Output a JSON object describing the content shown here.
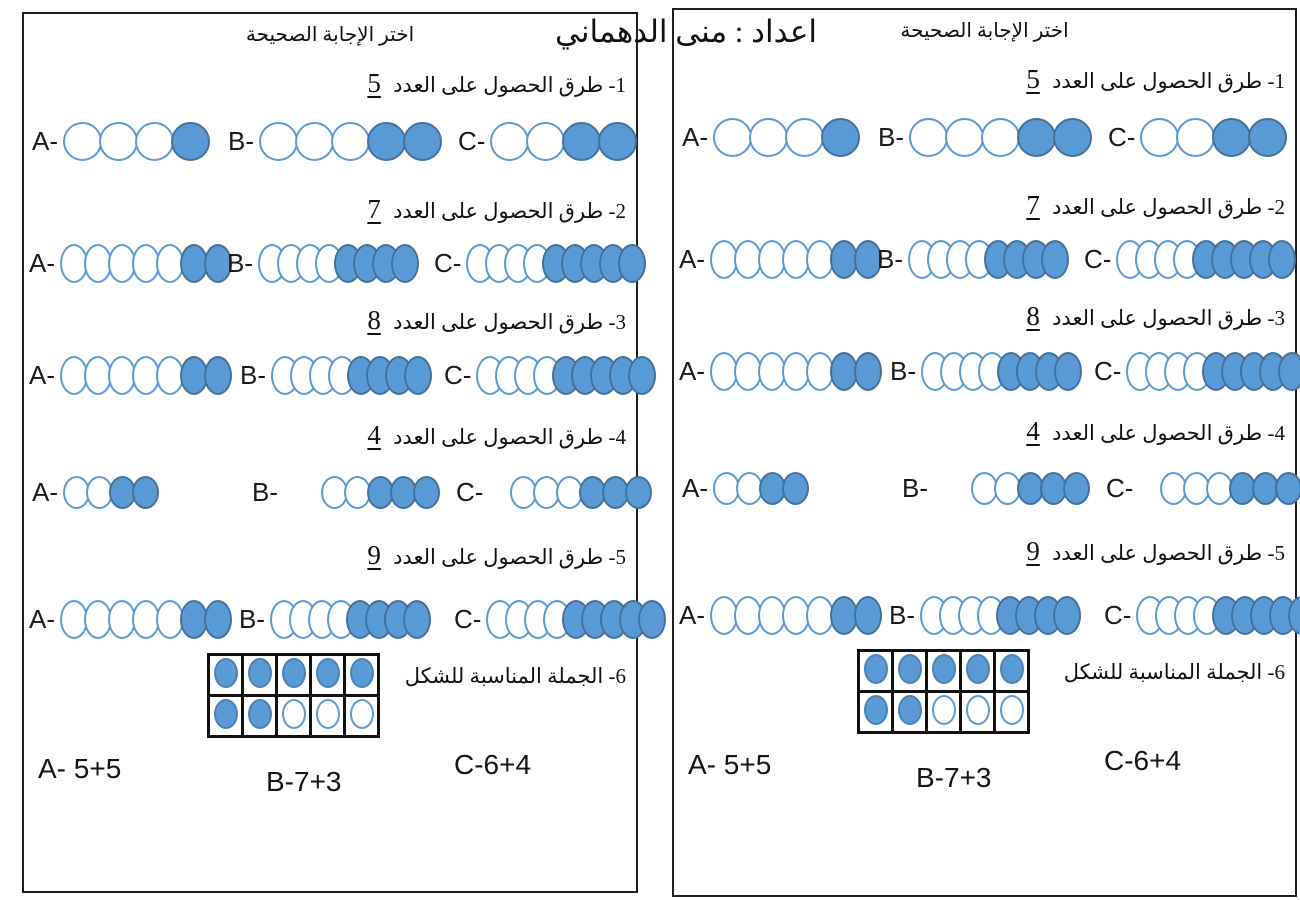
{
  "title_overlay": "اعداد : منى الدهماني",
  "panel": {
    "header": "اختر الإجابة الصحيحة",
    "q1": {
      "prefix": "1- طرق الحصول على العدد",
      "number": "5",
      "options": {
        "a": {
          "label": "A-",
          "empty": 3,
          "filled": 1
        },
        "b": {
          "label": "B-",
          "empty": 3,
          "filled": 2
        },
        "c": {
          "label": "C-",
          "empty": 2,
          "filled": 2
        }
      }
    },
    "q2": {
      "prefix": "2- طرق الحصول على العدد",
      "number": "7",
      "options": {
        "a": {
          "label": "A-",
          "empty": 5,
          "filled": 2
        },
        "b": {
          "label": "B-",
          "empty": 4,
          "filled": 4
        },
        "c": {
          "label": "C-",
          "empty": 4,
          "filled": 5
        }
      }
    },
    "q3": {
      "prefix": "3- طرق الحصول على العدد",
      "number": "8",
      "options": {
        "a": {
          "label": "A-",
          "empty": 5,
          "filled": 2
        },
        "b": {
          "label": "B-",
          "empty": 4,
          "filled": 4
        },
        "c": {
          "label": "C-",
          "empty": 4,
          "filled": 5
        }
      }
    },
    "q4": {
      "prefix": "4- طرق الحصول على العدد",
      "number": "4",
      "options": {
        "a": {
          "label": "A-",
          "empty": 2,
          "filled": 2
        },
        "b": {
          "label": "B-",
          "empty": 2,
          "filled": 3
        },
        "c": {
          "label": "C-",
          "empty": 3,
          "filled": 3
        }
      }
    },
    "q5": {
      "prefix": "5- طرق الحصول على العدد",
      "number": "9",
      "options": {
        "a": {
          "label": "A-",
          "empty": 5,
          "filled": 2
        },
        "b": {
          "label": "B-",
          "empty": 4,
          "filled": 4
        },
        "c": {
          "label": "C-",
          "empty": 4,
          "filled": 5
        }
      }
    },
    "q6": {
      "prompt": "6- الجملة المناسبة للشكل",
      "tenframe": [
        [
          1,
          1,
          1,
          1,
          1
        ],
        [
          1,
          1,
          0,
          0,
          0
        ]
      ],
      "answers": {
        "a": "A- 5+5",
        "b": "B-7+3",
        "c": "C-6+4"
      }
    }
  },
  "colors": {
    "counter_fill": "#5B9BD5",
    "counter_stroke_filled": "#41719C",
    "counter_stroke_empty": "#5B9BD5",
    "frame_border": "#111111",
    "panel_border": "#1f1f1f"
  }
}
